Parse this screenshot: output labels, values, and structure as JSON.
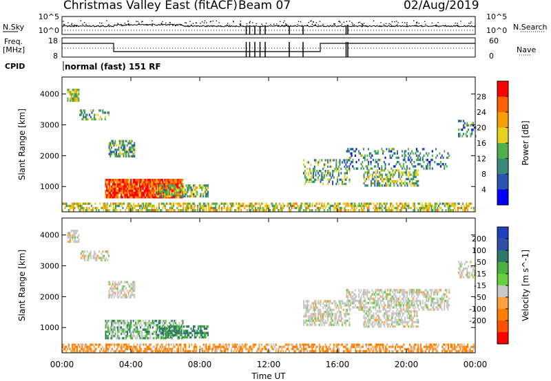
{
  "header": {
    "station": "Christmas Valley East (fitACF)",
    "beam": "Beam 07",
    "date": "02/Aug/2019"
  },
  "side_labels": {
    "nsky": "N.Sky",
    "freq": "Freq.",
    "freq_unit": "[MHz]",
    "cpid": "CPID",
    "nsearch": "N.Search",
    "nave": "Nave",
    "cpid_value": "normal (fast) 151 RF"
  },
  "chart_data": [
    {
      "type": "line",
      "panel": "noise",
      "left_ticks": [
        "10^5",
        "10^0"
      ],
      "right_ticks": [
        "10^5",
        "10^0"
      ],
      "series": [
        {
          "name": "N.Sky"
        },
        {
          "name": "N.Search"
        }
      ]
    },
    {
      "type": "line",
      "panel": "frequency-nave",
      "left_ticks": [
        18,
        8
      ],
      "right_ticks": [
        60,
        0
      ],
      "series": [
        {
          "name": "Freq."
        },
        {
          "name": "Nave"
        }
      ]
    },
    {
      "type": "heatmap",
      "panel": "power",
      "ylabel": "Slant Range [km]",
      "y_ticks": [
        1000,
        2000,
        3000,
        4000
      ],
      "ylim": [
        180,
        4550
      ],
      "colorbar_label": "Power [dB]",
      "colorbar_ticks": [
        4,
        8,
        12,
        16,
        20,
        24,
        28
      ],
      "colorbar_range": [
        0,
        32
      ],
      "colorbar_colors": [
        "#0000ff",
        "#2a55b0",
        "#3a8a7a",
        "#52b04a",
        "#e8d020",
        "#f5a000",
        "#ff6000",
        "#ff0000"
      ],
      "features": [
        {
          "t0": 0.3,
          "t1": 1.0,
          "r0": 3750,
          "r1": 4150,
          "level": 0.5,
          "density": 0.7
        },
        {
          "t0": 1.0,
          "t1": 2.7,
          "r0": 3150,
          "r1": 3450,
          "level": 0.4,
          "density": 0.45
        },
        {
          "t0": 2.7,
          "t1": 4.2,
          "r0": 1950,
          "r1": 2500,
          "level": 0.4,
          "density": 0.6
        },
        {
          "t0": 2.5,
          "t1": 7.0,
          "r0": 620,
          "r1": 1250,
          "level": 0.85,
          "density": 0.92
        },
        {
          "t0": 5.5,
          "t1": 8.5,
          "r0": 650,
          "r1": 1050,
          "level": 0.45,
          "density": 0.6
        },
        {
          "t0": 14.0,
          "t1": 16.7,
          "r0": 1050,
          "r1": 1850,
          "level": 0.4,
          "density": 0.35
        },
        {
          "t0": 17.5,
          "t1": 20.7,
          "r0": 1000,
          "r1": 1500,
          "level": 0.45,
          "density": 0.55
        },
        {
          "t0": 16.5,
          "t1": 22.5,
          "r0": 1550,
          "r1": 2250,
          "level": 0.3,
          "density": 0.25
        },
        {
          "t0": 23.0,
          "t1": 24.0,
          "r0": 2600,
          "r1": 3100,
          "level": 0.3,
          "density": 0.4
        },
        {
          "t0": 0.0,
          "t1": 24.0,
          "r0": 200,
          "r1": 480,
          "level": 0.55,
          "density": 0.55
        }
      ]
    },
    {
      "type": "heatmap",
      "panel": "velocity",
      "ylabel": "Slant Range [km]",
      "y_ticks": [
        1000,
        2000,
        3000,
        4000
      ],
      "ylim": [
        180,
        4550
      ],
      "colorbar_label": "Velocity [m s^-1]",
      "colorbar_ticks": [
        200,
        100,
        50,
        15,
        -15,
        -50,
        -100,
        -200
      ],
      "colorbar_colors": [
        "#2040c0",
        "#3050a8",
        "#2e7a6a",
        "#4cb040",
        "#66d040",
        "#c8c8c8",
        "#ffa040",
        "#ff8000",
        "#ff5000",
        "#ff0000"
      ],
      "features": [
        {
          "t0": 0.3,
          "t1": 1.0,
          "r0": 3750,
          "r1": 4150,
          "vel": 0
        },
        {
          "t0": 1.0,
          "t1": 2.7,
          "r0": 3150,
          "r1": 3450,
          "vel": 0
        },
        {
          "t0": 2.7,
          "t1": 4.2,
          "r0": 1950,
          "r1": 2500,
          "vel": 0
        },
        {
          "t0": 2.5,
          "t1": 7.0,
          "r0": 620,
          "r1": 1250,
          "vel": 20
        },
        {
          "t0": 5.5,
          "t1": 8.5,
          "r0": 650,
          "r1": 1050,
          "vel": 40
        },
        {
          "t0": 14.0,
          "t1": 16.7,
          "r0": 1050,
          "r1": 1850,
          "vel": 0
        },
        {
          "t0": 17.5,
          "t1": 20.7,
          "r0": 1000,
          "r1": 1500,
          "vel": 0
        },
        {
          "t0": 16.5,
          "t1": 22.5,
          "r0": 1550,
          "r1": 2250,
          "vel": 0
        },
        {
          "t0": 23.0,
          "t1": 24.0,
          "r0": 2600,
          "r1": 3100,
          "vel": 0
        },
        {
          "t0": 0.0,
          "t1": 24.0,
          "r0": 200,
          "r1": 480,
          "vel": -30
        }
      ]
    }
  ],
  "x_axis": {
    "label": "Time UT",
    "ticks": [
      "00:00",
      "04:00",
      "08:00",
      "12:00",
      "16:00",
      "20:00",
      "00:00"
    ],
    "range_hours": [
      0,
      24
    ]
  }
}
